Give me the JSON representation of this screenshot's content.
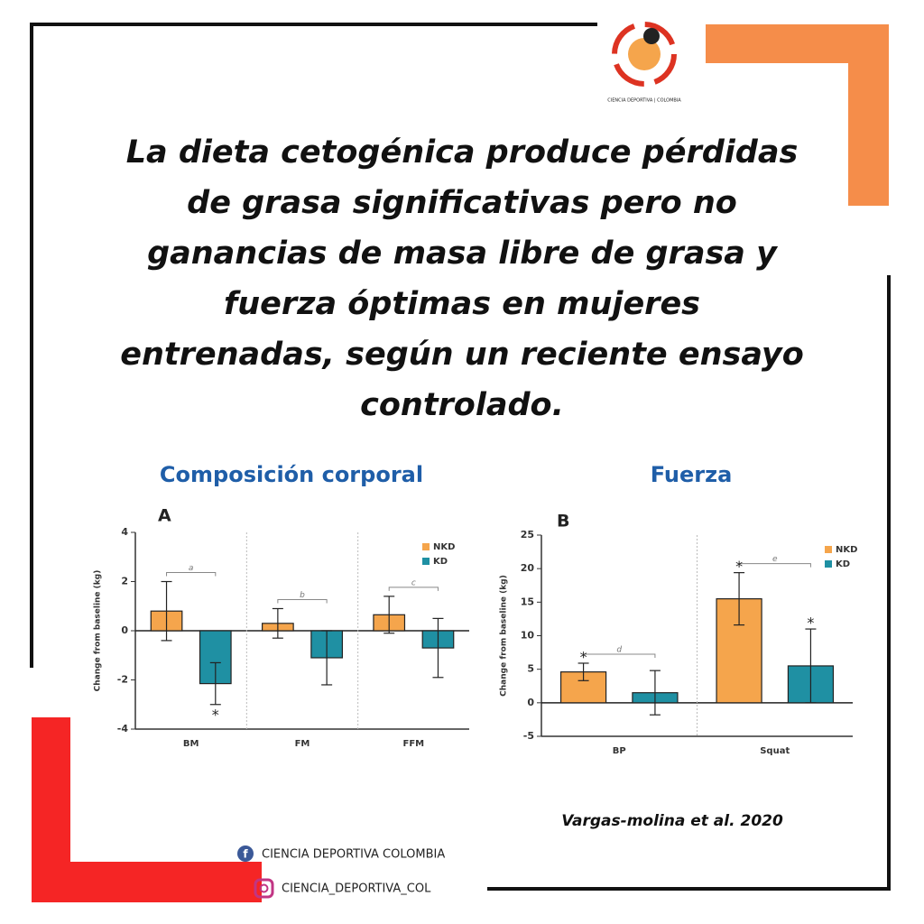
{
  "logo_text": "CIENCIA DEPORTIVA | COLOMBIA",
  "headline": [
    "La dieta cetogénica produce pérdidas",
    "de grasa significativas pero no",
    "ganancias de masa libre de grasa y",
    "fuerza óptimas en mujeres",
    "entrenadas, según un reciente ensayo",
    "controlado."
  ],
  "section_titles": [
    "Composición corporal",
    "Fuerza"
  ],
  "citation": "Vargas-molina et al. 2020",
  "social": {
    "facebook": "CIENCIA DEPORTIVA COLOMBIA",
    "instagram": "CIENCIA_DEPORTIVA_COL"
  },
  "chart_data": [
    {
      "type": "bar",
      "panel": "A",
      "y_label": "Change from baseline (kg)",
      "categories": [
        "BM",
        "FM",
        "FFM"
      ],
      "series": [
        {
          "name": "NKD",
          "color": "#f5a54c",
          "values": [
            0.8,
            0.3,
            0.65
          ],
          "errors": [
            1.2,
            0.6,
            0.75
          ]
        },
        {
          "name": "KD",
          "color": "#1f90a3",
          "values": [
            -2.15,
            -1.1,
            -0.7
          ],
          "errors": [
            0.85,
            1.1,
            1.2
          ]
        }
      ],
      "ylim": [
        -4,
        4
      ],
      "yticks": [
        -4,
        -2,
        0,
        2,
        4
      ],
      "brackets": [
        {
          "label": "a",
          "category": 0
        },
        {
          "label": "b",
          "category": 1
        },
        {
          "label": "c",
          "category": 2
        }
      ],
      "stars": [
        {
          "label": "*",
          "series": 1,
          "category": 0
        }
      ]
    },
    {
      "type": "bar",
      "panel": "B",
      "y_label": "Change from baseline (kg)",
      "categories": [
        "BP",
        "Squat"
      ],
      "series": [
        {
          "name": "NKD",
          "color": "#f5a54c",
          "values": [
            4.6,
            15.5
          ],
          "errors": [
            1.3,
            3.9
          ]
        },
        {
          "name": "KD",
          "color": "#1f90a3",
          "values": [
            1.5,
            5.5
          ],
          "errors": [
            3.3,
            5.5
          ]
        }
      ],
      "ylim": [
        -5,
        25
      ],
      "yticks": [
        -5,
        0,
        5,
        10,
        15,
        20,
        25
      ],
      "brackets": [
        {
          "label": "d",
          "category": 0
        },
        {
          "label": "e",
          "category": 1
        }
      ],
      "stars": [
        {
          "label": "*",
          "series": 0,
          "category": 0
        },
        {
          "label": "*",
          "series": 0,
          "category": 1
        },
        {
          "label": "*",
          "series": 1,
          "category": 1
        }
      ]
    }
  ]
}
